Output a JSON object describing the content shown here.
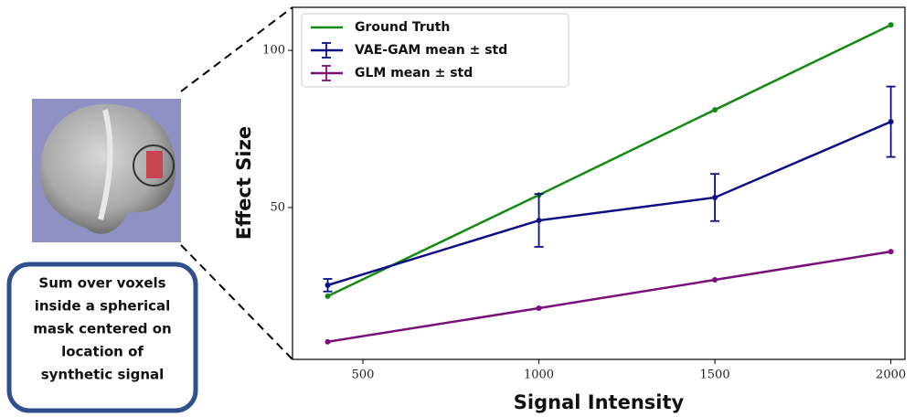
{
  "chart_data": {
    "type": "line",
    "xlabel": "Signal Intensity",
    "ylabel": "Effect Size",
    "annotation": [
      "Sum over voxels",
      "inside a spherical",
      "mask centered on",
      "location of",
      "synthetic signal"
    ],
    "xlim": [
      300,
      2040
    ],
    "xticks": [
      500,
      1000,
      1500,
      2000
    ],
    "ylim": [
      1.7,
      113.7
    ],
    "yticks": [
      50,
      100
    ],
    "legend": "upper left",
    "series": [
      {
        "name": "Ground Truth",
        "color": "#138a13",
        "style": "line",
        "x": [
          400,
          1000,
          1500,
          2000
        ],
        "values": [
          21.8,
          54,
          81.1,
          108.1
        ]
      },
      {
        "name": "VAE-GAM mean ± std",
        "color": "#0d0d85",
        "style": "errorbar",
        "x": [
          400,
          1000,
          1500,
          2000
        ],
        "values": [
          25.3,
          45.9,
          53.2,
          77.3
        ],
        "errors": [
          2,
          8.4,
          7.5,
          11.2
        ]
      },
      {
        "name": "GLM mean ± std",
        "color": "#7a0f7a",
        "style": "errorbar",
        "x": [
          400,
          1000,
          1500,
          2000
        ],
        "values": [
          7.3,
          18,
          27,
          36
        ]
      }
    ]
  }
}
